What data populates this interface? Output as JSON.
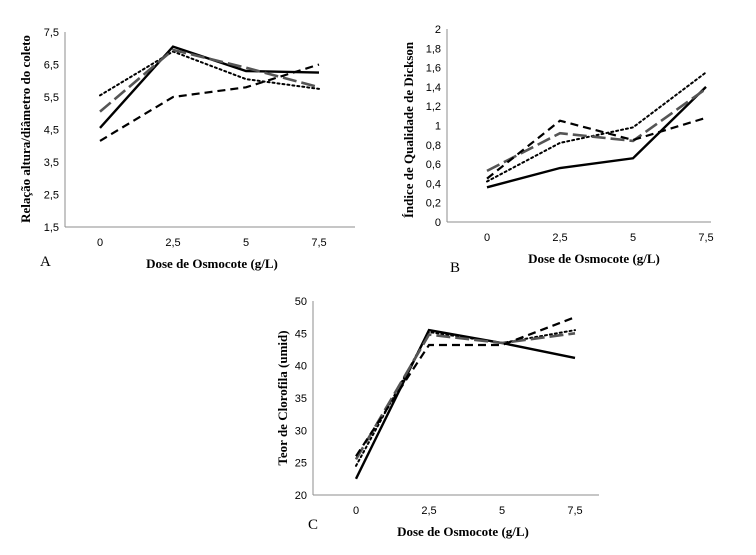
{
  "chart_data": [
    {
      "type": "line",
      "panel_label": "A",
      "xlabel": "Dose de Osmocote (g/L)",
      "ylabel": "Relação altura/diâmetro do coleto",
      "categories": [
        "0",
        "2,5",
        "5",
        "7,5"
      ],
      "yticks": [
        "1,5",
        "2,5",
        "3,5",
        "4,5",
        "5,5",
        "6,5",
        "7,5"
      ],
      "ylim": [
        1.5,
        7.5
      ],
      "series": [
        {
          "style": "solid",
          "color": "#000000",
          "values": [
            4.55,
            7.05,
            6.3,
            6.25
          ]
        },
        {
          "style": "dotted",
          "color": "#000000",
          "values": [
            5.55,
            6.9,
            6.05,
            5.75
          ]
        },
        {
          "style": "longdash",
          "color": "#555555",
          "values": [
            5.05,
            6.95,
            6.4,
            5.8
          ]
        },
        {
          "style": "dashed",
          "color": "#000000",
          "values": [
            4.15,
            5.5,
            5.8,
            6.5
          ]
        }
      ]
    },
    {
      "type": "line",
      "panel_label": "B",
      "xlabel": "Dose de Osmocote (g/L)",
      "ylabel": "Índice de Qualidade de Dickson",
      "categories": [
        "0",
        "2,5",
        "5",
        "7,5"
      ],
      "yticks": [
        "0",
        "0,2",
        "0,4",
        "0,6",
        "0,8",
        "1",
        "1,2",
        "1,4",
        "1,6",
        "1,8",
        "2"
      ],
      "ylim": [
        0,
        2
      ],
      "series": [
        {
          "style": "solid",
          "color": "#000000",
          "values": [
            0.36,
            0.56,
            0.66,
            1.4
          ]
        },
        {
          "style": "dotted",
          "color": "#000000",
          "values": [
            0.42,
            0.82,
            0.98,
            1.55
          ]
        },
        {
          "style": "longdash",
          "color": "#555555",
          "values": [
            0.53,
            0.92,
            0.84,
            1.38
          ]
        },
        {
          "style": "dashed",
          "color": "#000000",
          "values": [
            0.45,
            1.05,
            0.85,
            1.08
          ]
        }
      ]
    },
    {
      "type": "line",
      "panel_label": "C",
      "xlabel": "Dose de Osmocote (g/L)",
      "ylabel": "Teor de Clorofila (umid)",
      "categories": [
        "0",
        "2,5",
        "5",
        "7,5"
      ],
      "yticks": [
        "20",
        "25",
        "30",
        "35",
        "40",
        "45",
        "50"
      ],
      "ylim": [
        20,
        50
      ],
      "series": [
        {
          "style": "solid",
          "color": "#000000",
          "values": [
            22.5,
            45.5,
            43.5,
            41.2
          ]
        },
        {
          "style": "dotted",
          "color": "#000000",
          "values": [
            24.5,
            45.2,
            43.5,
            45.5
          ]
        },
        {
          "style": "longdash",
          "color": "#555555",
          "values": [
            25.5,
            44.8,
            43.5,
            45.0
          ]
        },
        {
          "style": "dashed",
          "color": "#000000",
          "values": [
            26.0,
            43.2,
            43.2,
            47.5
          ]
        }
      ]
    }
  ]
}
